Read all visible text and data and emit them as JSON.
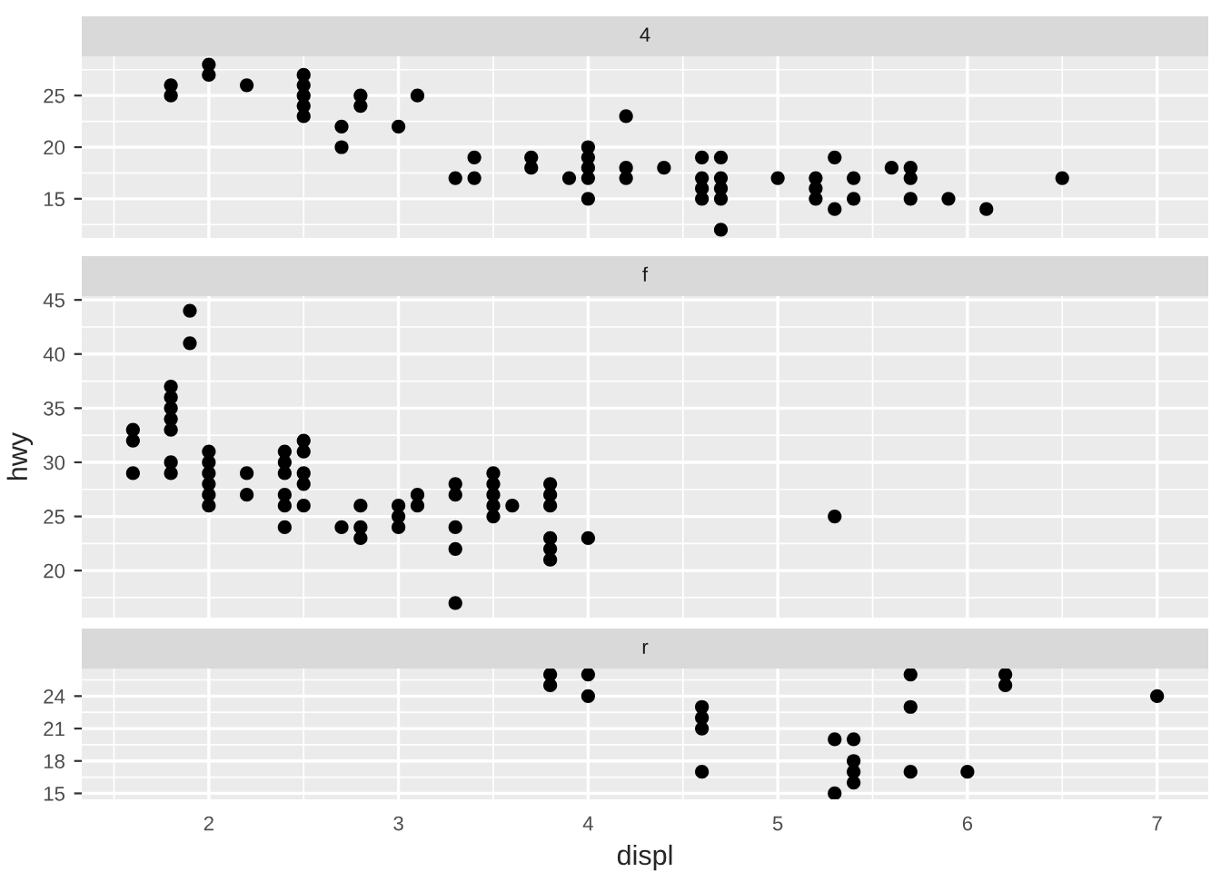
{
  "chart_data": [
    {
      "type": "scatter",
      "title": "4",
      "xlim": [
        1.33,
        7.27
      ],
      "xticks": [
        2,
        3,
        4,
        5,
        6,
        7
      ],
      "ylim": [
        11.2,
        28.8
      ],
      "yticks": [
        15,
        20,
        25
      ],
      "grid": true,
      "tick_labels": "y",
      "marker": "circle",
      "series": [
        {
          "color": "#000000",
          "x": [
            1.8,
            1.8,
            2.0,
            2.0,
            2.2,
            2.5,
            2.5,
            2.5,
            2.5,
            2.5,
            2.7,
            2.7,
            2.8,
            2.8,
            3.0,
            3.1,
            3.3,
            3.4,
            3.4,
            3.7,
            3.7,
            3.9,
            4.0,
            4.0,
            4.0,
            4.0,
            4.0,
            4.2,
            4.2,
            4.2,
            4.4,
            4.6,
            4.6,
            4.6,
            4.6,
            4.7,
            4.7,
            4.7,
            4.7,
            4.7,
            5.0,
            5.2,
            5.2,
            5.2,
            5.3,
            5.3,
            5.4,
            5.4,
            5.6,
            5.7,
            5.7,
            5.7,
            5.9,
            6.1,
            6.5
          ],
          "values": [
            25,
            26,
            27,
            28,
            26,
            23,
            24,
            25,
            26,
            27,
            20,
            22,
            24,
            25,
            22,
            25,
            17,
            17,
            19,
            18,
            19,
            17,
            15,
            17,
            18,
            19,
            20,
            17,
            18,
            23,
            18,
            15,
            16,
            17,
            19,
            12,
            15,
            16,
            17,
            19,
            17,
            15,
            16,
            17,
            14,
            19,
            15,
            17,
            18,
            15,
            17,
            18,
            15,
            14,
            17
          ]
        }
      ]
    },
    {
      "type": "scatter",
      "title": "f",
      "ylabel": "hwy",
      "xlim": [
        1.33,
        7.27
      ],
      "xticks": [
        2,
        3,
        4,
        5,
        6,
        7
      ],
      "ylim": [
        15.65,
        45.35
      ],
      "yticks": [
        20,
        25,
        30,
        35,
        40,
        45
      ],
      "grid": true,
      "tick_labels": "y",
      "marker": "circle",
      "series": [
        {
          "color": "#000000",
          "x": [
            1.6,
            1.6,
            1.6,
            1.8,
            1.8,
            1.8,
            1.8,
            1.8,
            1.8,
            1.8,
            1.9,
            1.9,
            2.0,
            2.0,
            2.0,
            2.0,
            2.0,
            2.0,
            2.2,
            2.2,
            2.4,
            2.4,
            2.4,
            2.4,
            2.4,
            2.4,
            2.5,
            2.5,
            2.5,
            2.5,
            2.5,
            2.7,
            2.8,
            2.8,
            2.8,
            3.0,
            3.0,
            3.0,
            3.1,
            3.1,
            3.3,
            3.3,
            3.3,
            3.3,
            3.3,
            3.5,
            3.5,
            3.5,
            3.5,
            3.5,
            3.6,
            3.8,
            3.8,
            3.8,
            3.8,
            3.8,
            3.8,
            4.0,
            5.3
          ],
          "values": [
            29,
            32,
            33,
            29,
            30,
            33,
            34,
            35,
            36,
            37,
            41,
            44,
            26,
            27,
            28,
            29,
            30,
            31,
            27,
            29,
            24,
            26,
            27,
            29,
            30,
            31,
            26,
            28,
            29,
            31,
            32,
            24,
            23,
            24,
            26,
            24,
            25,
            26,
            26,
            27,
            17,
            22,
            24,
            27,
            28,
            25,
            26,
            27,
            28,
            29,
            26,
            21,
            22,
            23,
            26,
            27,
            28,
            23,
            25
          ]
        }
      ]
    },
    {
      "type": "scatter",
      "title": "r",
      "xlabel": "displ",
      "xlim": [
        1.33,
        7.27
      ],
      "xticks": [
        2,
        3,
        4,
        5,
        6,
        7
      ],
      "ylim": [
        14.45,
        26.55
      ],
      "yticks": [
        15,
        18,
        21,
        24
      ],
      "grid": true,
      "marker": "circle",
      "series": [
        {
          "color": "#000000",
          "x": [
            3.8,
            3.8,
            4.0,
            4.0,
            4.6,
            4.6,
            4.6,
            4.6,
            5.3,
            5.3,
            5.4,
            5.4,
            5.4,
            5.4,
            5.7,
            5.7,
            5.7,
            6.0,
            6.2,
            6.2,
            7.0
          ],
          "values": [
            25,
            26,
            24,
            26,
            17,
            21,
            22,
            23,
            15,
            20,
            16,
            17,
            18,
            20,
            17,
            23,
            26,
            17,
            25,
            26,
            24
          ]
        }
      ]
    }
  ]
}
